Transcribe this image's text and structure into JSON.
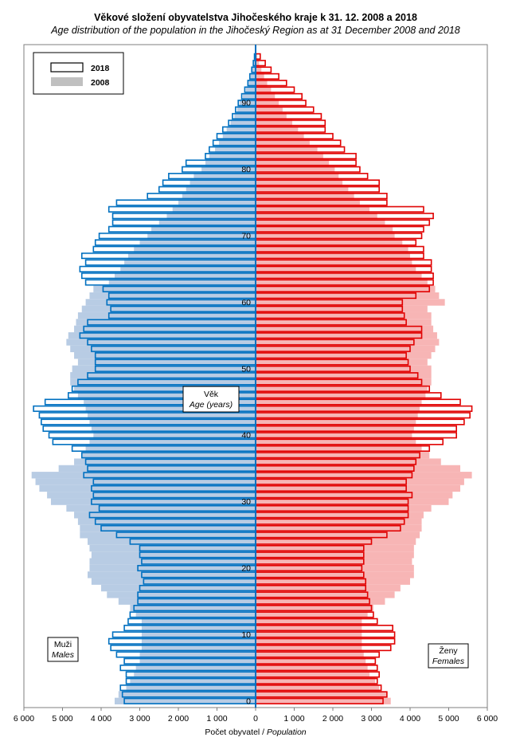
{
  "chart_data": {
    "type": "bar",
    "orientation": "horizontal-pyramid",
    "title": "Věkové složení obyvatelstva  Jihočeského  kraje k 31. 12. 2008 a 2018",
    "subtitle": "Age distribution of the population  in the Jihočeský Region  as at 31 December 2008  and 2018",
    "xlabel": "Počet obyvatel",
    "xlabel_en": "Population",
    "xlabel_sep": " / ",
    "age_label": "Věk",
    "age_label_en": "Age (years)",
    "male_label": "Muži",
    "male_label_en": "Males",
    "female_label": "Ženy",
    "female_label_en": "Females",
    "xlim": [
      -6000,
      6000
    ],
    "x_ticks": [
      -6000,
      -5000,
      -4000,
      -3000,
      -2000,
      -1000,
      0,
      1000,
      2000,
      3000,
      4000,
      5000,
      6000
    ],
    "x_tick_labels": [
      "6 000",
      "5 000",
      "4 000",
      "3 000",
      "2 000",
      "1 000",
      "0",
      "1 000",
      "2 000",
      "3 000",
      "4 000",
      "5 000",
      "6 000"
    ],
    "age_ticks": [
      0,
      10,
      20,
      30,
      40,
      50,
      60,
      70,
      80,
      90
    ],
    "age_range": [
      0,
      97
    ],
    "legend": {
      "placement": "top-left",
      "entries": [
        "2018",
        "2008"
      ]
    },
    "colors": {
      "male_2018": "#0070c0",
      "male_2008": "#b8cce4",
      "female_2018": "#e00000",
      "female_2008": "#f7b5b5"
    },
    "ages": [
      0,
      1,
      2,
      3,
      4,
      5,
      6,
      7,
      8,
      9,
      10,
      11,
      12,
      13,
      14,
      15,
      16,
      17,
      18,
      19,
      20,
      21,
      22,
      23,
      24,
      25,
      26,
      27,
      28,
      29,
      30,
      31,
      32,
      33,
      34,
      35,
      36,
      37,
      38,
      39,
      40,
      41,
      42,
      43,
      44,
      45,
      46,
      47,
      48,
      49,
      50,
      51,
      52,
      53,
      54,
      55,
      56,
      57,
      58,
      59,
      60,
      61,
      62,
      63,
      64,
      65,
      66,
      67,
      68,
      69,
      70,
      71,
      72,
      73,
      74,
      75,
      76,
      77,
      78,
      79,
      80,
      81,
      82,
      83,
      84,
      85,
      86,
      87,
      88,
      89,
      90,
      91,
      92,
      93,
      94,
      95,
      96,
      97
    ],
    "series": [
      {
        "name": "2008",
        "sex": "male",
        "values": [
          3650,
          3550,
          3350,
          3250,
          3150,
          3100,
          3000,
          3000,
          2950,
          2950,
          2950,
          2950,
          2950,
          3100,
          3250,
          3550,
          3850,
          4000,
          4250,
          4350,
          4300,
          4300,
          4250,
          4300,
          4350,
          4550,
          4550,
          4600,
          4700,
          4900,
          5300,
          5400,
          5600,
          5700,
          5800,
          5100,
          4700,
          4500,
          4400,
          4300,
          4200,
          4250,
          4300,
          4350,
          4400,
          4450,
          4600,
          4700,
          4800,
          4800,
          4750,
          4600,
          4700,
          4800,
          4900,
          4850,
          4700,
          4650,
          4600,
          4500,
          4400,
          4300,
          4200,
          3800,
          3650,
          3500,
          3400,
          3300,
          3150,
          3000,
          2800,
          2700,
          2500,
          2300,
          2150,
          2000,
          1900,
          1800,
          1700,
          1600,
          1400,
          1300,
          1200,
          1050,
          950,
          850,
          750,
          650,
          550,
          480,
          420,
          330,
          250,
          180,
          130,
          90,
          60,
          30
        ]
      },
      {
        "name": "2018",
        "sex": "male",
        "values": [
          3400,
          3450,
          3500,
          3350,
          3350,
          3500,
          3400,
          3600,
          3750,
          3800,
          3700,
          3400,
          3300,
          3250,
          3150,
          3050,
          3050,
          3000,
          2900,
          2950,
          3050,
          2950,
          3000,
          3000,
          3250,
          3600,
          4000,
          4150,
          4300,
          4050,
          4250,
          4200,
          4250,
          4200,
          4450,
          4350,
          4400,
          4500,
          4750,
          5250,
          5350,
          5500,
          5550,
          5600,
          5750,
          5450,
          4850,
          4750,
          4600,
          4350,
          4150,
          4150,
          4150,
          4250,
          4350,
          4550,
          4450,
          4350,
          3800,
          3750,
          3850,
          3800,
          3950,
          4400,
          4500,
          4550,
          4400,
          4500,
          4200,
          4150,
          4050,
          3800,
          3700,
          3700,
          3800,
          3600,
          2800,
          2500,
          2400,
          2250,
          1900,
          1800,
          1300,
          1200,
          1100,
          1000,
          850,
          700,
          600,
          520,
          450,
          360,
          280,
          200,
          150,
          100,
          60,
          30
        ]
      },
      {
        "name": "2008",
        "sex": "female",
        "values": [
          3500,
          3400,
          3200,
          3100,
          2950,
          2900,
          2850,
          2800,
          2750,
          2750,
          2750,
          2750,
          2750,
          2900,
          3050,
          3350,
          3600,
          3750,
          4000,
          4100,
          4100,
          4050,
          4100,
          4100,
          4150,
          4250,
          4300,
          4300,
          4350,
          4550,
          5000,
          5100,
          5300,
          5400,
          5600,
          5300,
          4800,
          4500,
          4300,
          4150,
          4050,
          4100,
          4150,
          4200,
          4250,
          4300,
          4400,
          4450,
          4550,
          4550,
          4550,
          4450,
          4550,
          4650,
          4750,
          4700,
          4600,
          4550,
          4550,
          4450,
          4900,
          4750,
          4650,
          4450,
          4300,
          4150,
          4050,
          4000,
          3950,
          3800,
          3600,
          3550,
          3350,
          3150,
          2950,
          2700,
          2550,
          2400,
          2250,
          2150,
          2050,
          1900,
          1750,
          1600,
          1400,
          1250,
          1100,
          950,
          800,
          700,
          600,
          500,
          400,
          300,
          220,
          150,
          90,
          40
        ]
      },
      {
        "name": "2018",
        "sex": "female",
        "values": [
          3300,
          3400,
          3250,
          3150,
          3200,
          3150,
          3100,
          3200,
          3500,
          3600,
          3600,
          3550,
          3150,
          3050,
          3000,
          2950,
          2900,
          2850,
          2850,
          2800,
          2750,
          2800,
          2800,
          2800,
          3000,
          3400,
          3750,
          3850,
          3950,
          3950,
          3950,
          4050,
          3900,
          3900,
          4050,
          4100,
          4150,
          4250,
          4500,
          4850,
          5200,
          5200,
          5400,
          5550,
          5600,
          5300,
          4800,
          4500,
          4300,
          4200,
          4000,
          3950,
          3900,
          4000,
          4100,
          4300,
          4300,
          3900,
          3850,
          3800,
          3800,
          4150,
          4500,
          4600,
          4600,
          4550,
          4550,
          4350,
          4350,
          4150,
          4300,
          4350,
          4500,
          4600,
          4350,
          3400,
          3400,
          3200,
          3200,
          2900,
          2700,
          2600,
          2600,
          2300,
          2200,
          2000,
          1800,
          1800,
          1700,
          1500,
          1300,
          1200,
          1000,
          800,
          600,
          400,
          250,
          120
        ]
      }
    ]
  }
}
